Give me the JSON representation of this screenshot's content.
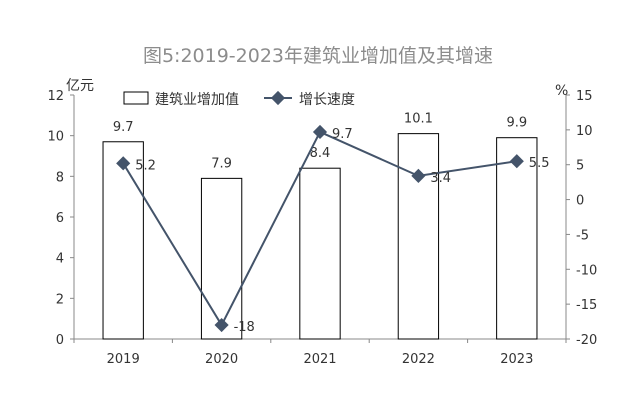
{
  "chart_data": {
    "type": "bar",
    "title": "图5:2019-2023年建筑业增加值及其增速",
    "categories": [
      "2019",
      "2020",
      "2021",
      "2022",
      "2023"
    ],
    "series": [
      {
        "name": "建筑业增加值",
        "type": "bar",
        "axis": "left",
        "values": [
          9.7,
          7.9,
          8.4,
          10.1,
          9.9
        ],
        "labels": [
          "9.7",
          "7.9",
          "8.4",
          "10.1",
          "9.9"
        ]
      },
      {
        "name": "增长速度",
        "type": "line",
        "axis": "right",
        "values": [
          5.2,
          -18,
          9.7,
          3.4,
          5.5
        ],
        "labels": [
          "5.2",
          "-18",
          "9.7",
          "3.4",
          "5.5"
        ]
      }
    ],
    "ylabel_left": "亿元",
    "ylabel_right": "%",
    "ylim_left": [
      0,
      12
    ],
    "ylim_right": [
      -20,
      15
    ],
    "left_ticks": [
      "0",
      "2",
      "4",
      "6",
      "8",
      "10",
      "12"
    ],
    "right_ticks": [
      "-20",
      "-15",
      "-10",
      "-5",
      "0",
      "5",
      "10",
      "15"
    ],
    "legend_position": "top",
    "grid": false,
    "colors": {
      "bar_fill": "#ffffff",
      "bar_stroke": "#000000",
      "line": "#44546a",
      "title": "#8c8c8c"
    }
  }
}
